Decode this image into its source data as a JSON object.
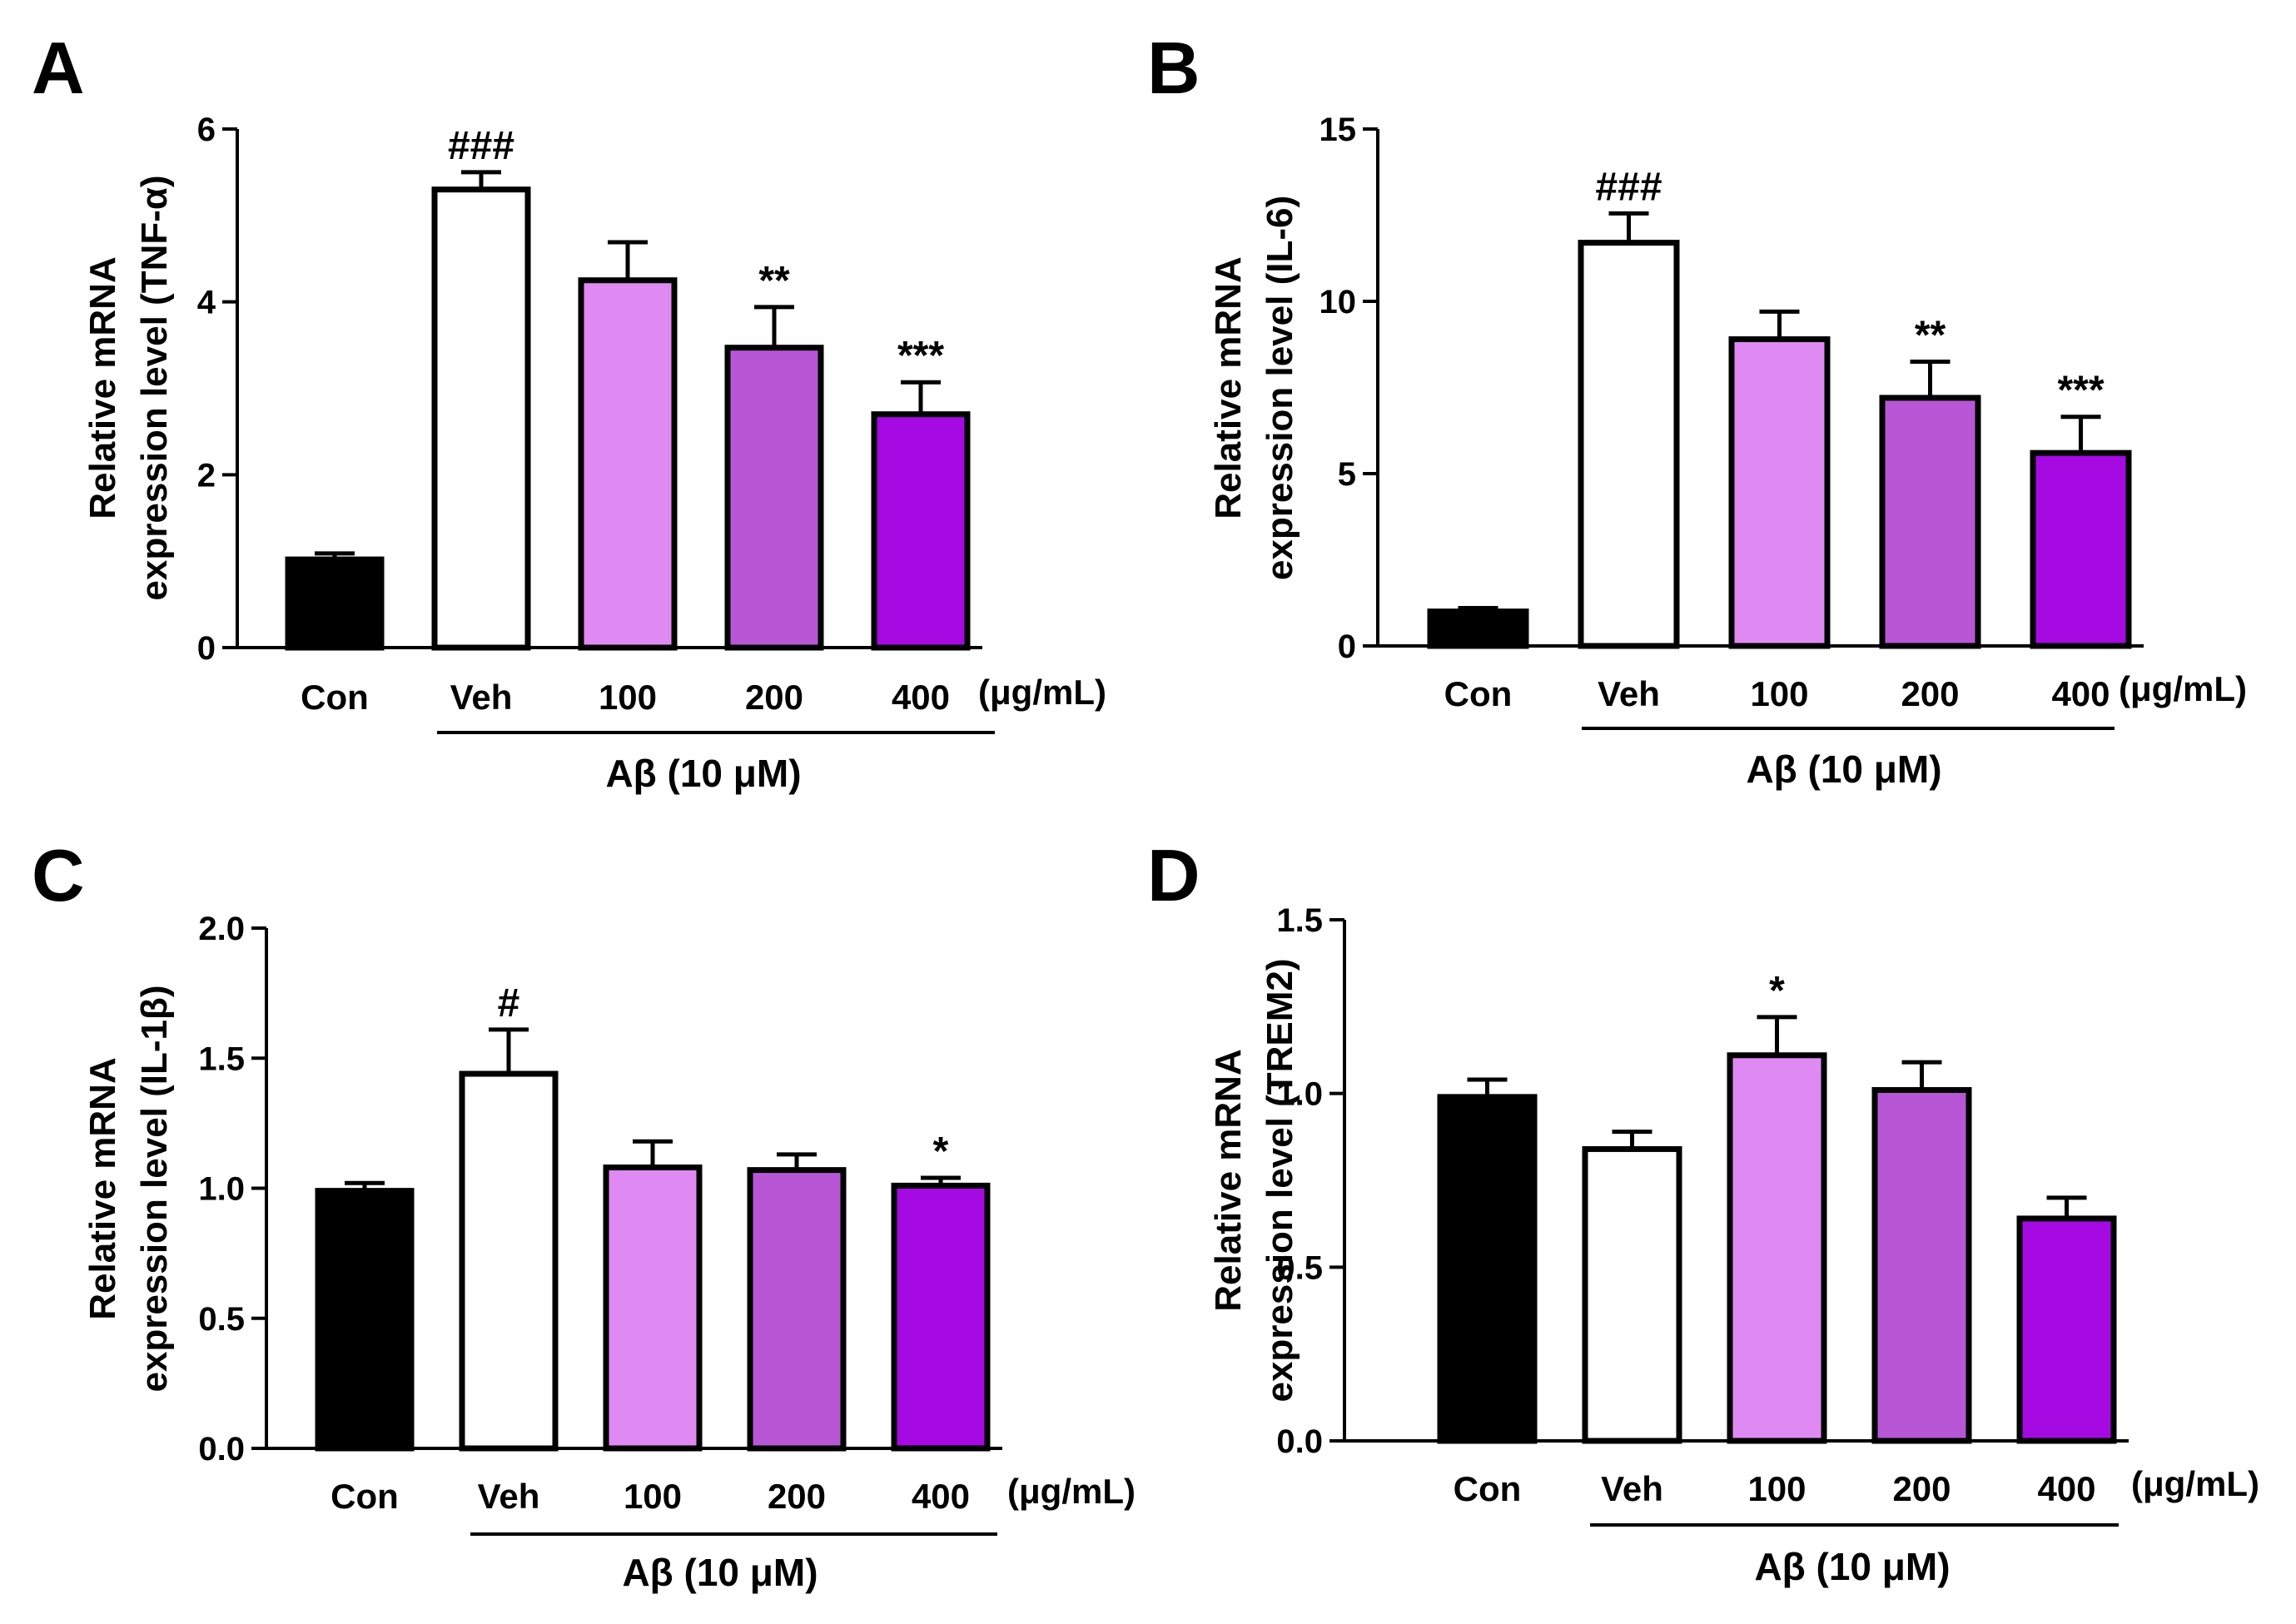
{
  "chart_data": [
    {
      "panel": "A",
      "type": "bar",
      "categories": [
        "Con",
        "Veh",
        "100",
        "200",
        "400"
      ],
      "values": [
        1.02,
        5.3,
        4.25,
        3.47,
        2.7
      ],
      "errors": [
        0.07,
        0.2,
        0.44,
        0.47,
        0.37
      ],
      "significance": [
        "",
        "###",
        "",
        "**",
        "***"
      ],
      "colors": [
        "#000000",
        "#ffffff",
        "#df8af3",
        "#b857d6",
        "#a40ae1"
      ],
      "ylabel": [
        "Relative mRNA",
        "expression level (TNF-α)"
      ],
      "ylim": [
        0,
        6
      ],
      "yticks": [
        "0",
        "2",
        "4",
        "6"
      ],
      "unit_label": "(μg/mL)",
      "group_label": "Aβ (10 μM)"
    },
    {
      "panel": "B",
      "type": "bar",
      "categories": [
        "Con",
        "Veh",
        "100",
        "200",
        "400"
      ],
      "values": [
        1.0,
        11.7,
        8.9,
        7.2,
        5.6
      ],
      "errors": [
        0.1,
        0.85,
        0.8,
        1.05,
        1.05
      ],
      "significance": [
        "",
        "###",
        "",
        "**",
        "***"
      ],
      "colors": [
        "#000000",
        "#ffffff",
        "#df8af3",
        "#b857d6",
        "#a40ae1"
      ],
      "ylabel": [
        "Relative mRNA",
        "expression level (IL-6)"
      ],
      "ylim": [
        0,
        15
      ],
      "yticks": [
        "0",
        "5",
        "10",
        "15"
      ],
      "unit_label": "(μg/mL)",
      "group_label": "Aβ (10 μM)"
    },
    {
      "panel": "C",
      "type": "bar",
      "categories": [
        "Con",
        "Veh",
        "100",
        "200",
        "400"
      ],
      "values": [
        0.99,
        1.44,
        1.08,
        1.07,
        1.01
      ],
      "errors": [
        0.03,
        0.17,
        0.1,
        0.06,
        0.03
      ],
      "significance": [
        "",
        "#",
        "",
        "",
        "*"
      ],
      "colors": [
        "#000000",
        "#ffffff",
        "#df8af3",
        "#b857d6",
        "#a40ae1"
      ],
      "ylabel": [
        "Relative mRNA",
        "expression level (IL-1β)"
      ],
      "ylim": [
        0,
        2.0
      ],
      "yticks": [
        "0.0",
        "0.5",
        "1.0",
        "1.5",
        "2.0"
      ],
      "unit_label": "(μg/mL)",
      "group_label": "Aβ (10 μM)"
    },
    {
      "panel": "D",
      "type": "bar",
      "categories": [
        "Con",
        "Veh",
        "100",
        "200",
        "400"
      ],
      "values": [
        0.99,
        0.84,
        1.11,
        1.01,
        0.64
      ],
      "errors": [
        0.05,
        0.05,
        0.11,
        0.08,
        0.06
      ],
      "significance": [
        "",
        "",
        "*",
        "",
        ""
      ],
      "colors": [
        "#000000",
        "#ffffff",
        "#df8af3",
        "#b857d6",
        "#a40ae1"
      ],
      "ylabel": [
        "Relative mRNA",
        "expression level (TREM2)"
      ],
      "ylim": [
        0,
        1.5
      ],
      "yticks": [
        "0.0",
        "0.5",
        "1.0",
        "1.5"
      ],
      "unit_label": "(μg/mL)",
      "group_label": "Aβ (10 μM)"
    }
  ]
}
